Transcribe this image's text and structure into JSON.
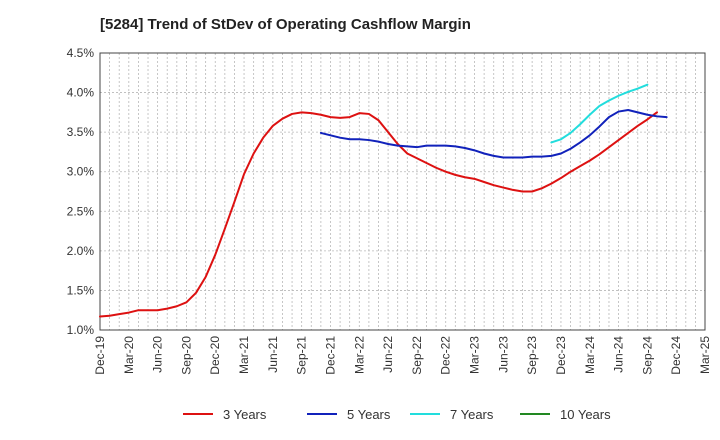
{
  "chart_data": {
    "type": "line",
    "title": "[5284]  Trend of StDev of Operating Cashflow Margin",
    "xlabel": "",
    "ylabel": "",
    "ylim": [
      0.01,
      0.045
    ],
    "y_ticks": [
      0.01,
      0.015,
      0.02,
      0.025,
      0.03,
      0.035,
      0.04,
      0.045
    ],
    "y_tick_labels": [
      "1.0%",
      "1.5%",
      "2.0%",
      "2.5%",
      "3.0%",
      "3.5%",
      "4.0%",
      "4.5%"
    ],
    "x_range": [
      "2019-12",
      "2025-03"
    ],
    "x_tick_labels": [
      "Dec-19",
      "Mar-20",
      "Jun-20",
      "Sep-20",
      "Dec-20",
      "Mar-21",
      "Jun-21",
      "Sep-21",
      "Dec-21",
      "Mar-22",
      "Jun-22",
      "Sep-22",
      "Dec-22",
      "Mar-23",
      "Jun-23",
      "Sep-23",
      "Dec-23",
      "Mar-24",
      "Jun-24",
      "Sep-24",
      "Dec-24",
      "Mar-25"
    ],
    "grid": true,
    "legend_position": "bottom",
    "series": [
      {
        "name": "3 Years",
        "color": "#dd1111",
        "start": "2019-12",
        "values": [
          0.0117,
          0.0118,
          0.012,
          0.0122,
          0.0125,
          0.0125,
          0.0125,
          0.0127,
          0.013,
          0.0135,
          0.0147,
          0.0167,
          0.0195,
          0.0228,
          0.0262,
          0.0297,
          0.0323,
          0.0343,
          0.0358,
          0.0367,
          0.0373,
          0.0375,
          0.0374,
          0.0372,
          0.0369,
          0.0368,
          0.0369,
          0.0374,
          0.0373,
          0.0365,
          0.035,
          0.0335,
          0.0323,
          0.0317,
          0.0311,
          0.0305,
          0.03,
          0.0296,
          0.0293,
          0.0291,
          0.0287,
          0.0283,
          0.028,
          0.0277,
          0.0275,
          0.0275,
          0.0279,
          0.0285,
          0.0292,
          0.03,
          0.0307,
          0.0314,
          0.0322,
          0.0331,
          0.034,
          0.0349,
          0.0358,
          0.0366,
          0.0375
        ]
      },
      {
        "name": "5 Years",
        "color": "#1122bb",
        "start": "2021-11",
        "values": [
          0.0349,
          0.0346,
          0.0343,
          0.0341,
          0.0341,
          0.034,
          0.0338,
          0.0335,
          0.0333,
          0.0332,
          0.0331,
          0.0333,
          0.0333,
          0.0333,
          0.0332,
          0.033,
          0.0327,
          0.0323,
          0.032,
          0.0318,
          0.0318,
          0.0318,
          0.0319,
          0.0319,
          0.032,
          0.0323,
          0.0329,
          0.0337,
          0.0346,
          0.0357,
          0.0369,
          0.0376,
          0.0378,
          0.0375,
          0.0372,
          0.037,
          0.0369
        ]
      },
      {
        "name": "7 Years",
        "color": "#22dddd",
        "start": "2023-11",
        "values": [
          0.0337,
          0.0341,
          0.0349,
          0.036,
          0.0372,
          0.0383,
          0.039,
          0.0396,
          0.0401,
          0.0405,
          0.041
        ]
      },
      {
        "name": "10 Years",
        "color": "#228822",
        "start": "2024-09",
        "values": []
      }
    ]
  }
}
